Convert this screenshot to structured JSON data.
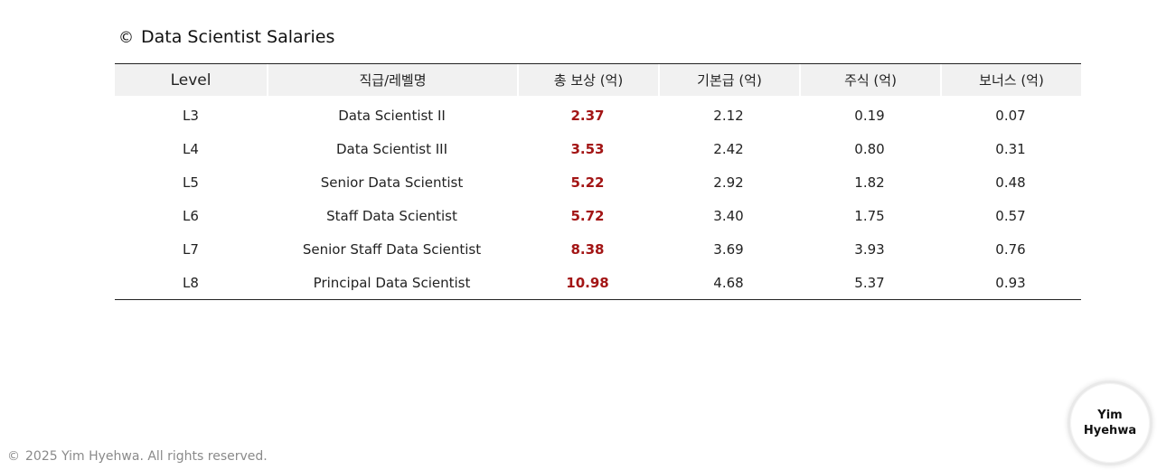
{
  "title": {
    "mark": "©",
    "text": "Data Scientist Salaries"
  },
  "table": {
    "headers": {
      "level": "Level",
      "title": "직급/레벨명",
      "total": "총 보상 (억)",
      "base": "기본급 (억)",
      "stock": "주식 (억)",
      "bonus": "보너스 (억)"
    },
    "rows": [
      {
        "level": "L3",
        "title": "Data Scientist II",
        "total": "2.37",
        "base": "2.12",
        "stock": "0.19",
        "bonus": "0.07"
      },
      {
        "level": "L4",
        "title": "Data Scientist III",
        "total": "3.53",
        "base": "2.42",
        "stock": "0.80",
        "bonus": "0.31"
      },
      {
        "level": "L5",
        "title": "Senior Data Scientist",
        "total": "5.22",
        "base": "2.92",
        "stock": "1.82",
        "bonus": "0.48"
      },
      {
        "level": "L6",
        "title": "Staff Data Scientist",
        "total": "5.72",
        "base": "3.40",
        "stock": "1.75",
        "bonus": "0.57"
      },
      {
        "level": "L7",
        "title": "Senior Staff Data Scientist",
        "total": "8.38",
        "base": "3.69",
        "stock": "3.93",
        "bonus": "0.76"
      },
      {
        "level": "L8",
        "title": "Principal Data Scientist",
        "total": "10.98",
        "base": "4.68",
        "stock": "5.37",
        "bonus": "0.93"
      }
    ]
  },
  "footer": {
    "copyright_mark": "©",
    "text": "2025 Yim Hyehwa. All rights reserved."
  },
  "badge": {
    "line1": "Yim",
    "line2": "Hyehwa"
  },
  "colors": {
    "total_highlight": "#a31515",
    "header_bg": "#f1f1f1",
    "footer_text": "#8a8a8a"
  }
}
